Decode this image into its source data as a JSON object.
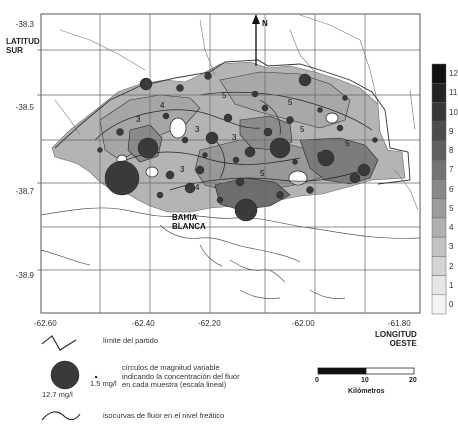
{
  "lat_title": [
    "LATITUD",
    "SUR"
  ],
  "lon_title": [
    "LONGITUD",
    "OESTE"
  ],
  "north_label": "N",
  "place_label": [
    "BAHIA",
    "BLANCA"
  ],
  "lat_ticks": [
    "-38.3",
    "-38.5",
    "-38.7",
    "-38.9"
  ],
  "lon_ticks": [
    "-62.60",
    "-62.40",
    "-62.20",
    "-62.00",
    "-61.80"
  ],
  "colorbar": {
    "ticks": [
      "0",
      "1",
      "2",
      "3",
      "4",
      "5",
      "6",
      "7",
      "8",
      "9",
      "10",
      "11",
      "12"
    ],
    "colors": [
      "#f4f4f4",
      "#e6e6e6",
      "#d4d4d4",
      "#c2c2c2",
      "#b0b0b0",
      "#9c9c9c",
      "#888888",
      "#747474",
      "#606060",
      "#4c4c4c",
      "#383838",
      "#242424",
      "#101010"
    ]
  },
  "contour_labels": [
    "4",
    "3",
    "5",
    "3",
    "5",
    "4",
    "5",
    "6",
    "3",
    "5",
    "4",
    "5",
    "3"
  ],
  "legend": {
    "boundary": "límite del partido",
    "circles_desc": [
      "círculos de magnitud variable",
      "indicando la concentración del fluor",
      "en cada muestra (escala lineal)"
    ],
    "max_value": "12.7 mg/l",
    "min_value": "1.5 mg/l",
    "isocurves": "isocurvas de fluor en el nivel freático"
  },
  "scale": {
    "ticks": [
      "0",
      "10",
      "20"
    ],
    "unit": "Kilómetros"
  }
}
